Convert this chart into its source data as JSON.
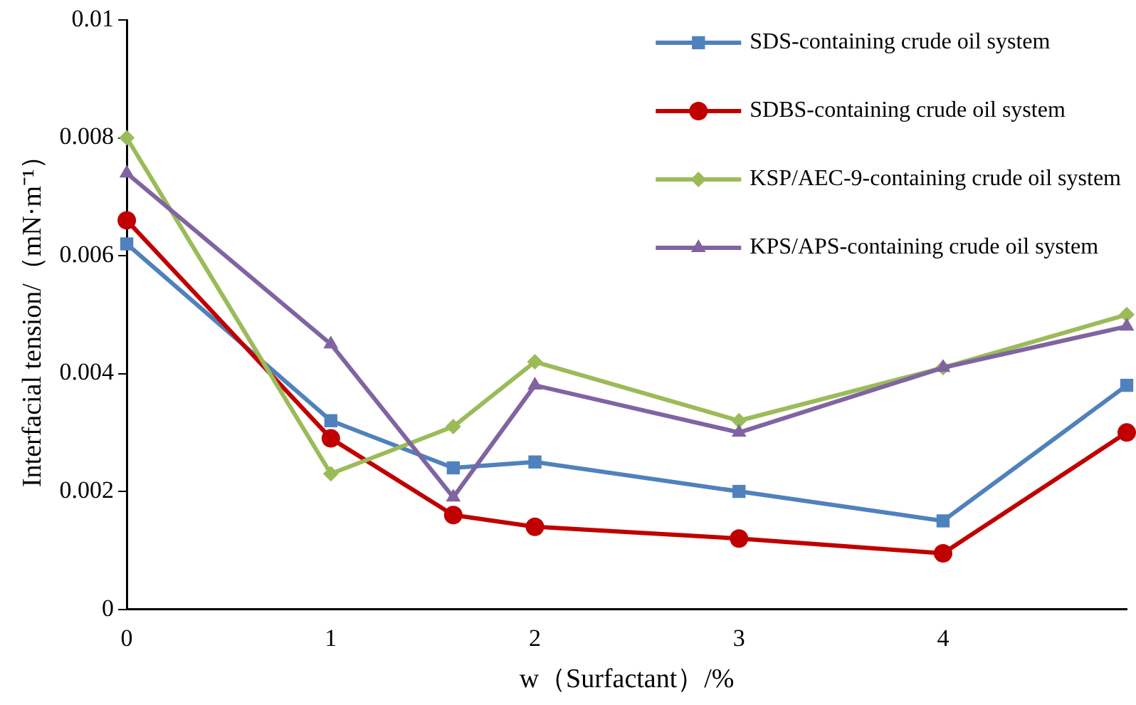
{
  "chart_data": {
    "type": "line",
    "xlabel": "w（Surfactant）/%",
    "ylabel": "Interfacial tension/（mN·m⁻¹）",
    "x": [
      0,
      1,
      1.6,
      2,
      3,
      4,
      4.9
    ],
    "xlim": [
      0,
      4.9
    ],
    "xticks": [
      0,
      1,
      2,
      3,
      4
    ],
    "ylim": [
      0,
      0.01
    ],
    "yticks": [
      0,
      0.002,
      0.004,
      0.006,
      0.008,
      0.01
    ],
    "grid": false,
    "legend": "top right",
    "line_style": "solid",
    "series": [
      {
        "name": "SDS-containing crude oil system",
        "color": "#4f81bd",
        "marker": "square",
        "values": [
          0.0062,
          0.0032,
          0.0024,
          0.0025,
          0.002,
          0.0015,
          0.0038
        ]
      },
      {
        "name": "SDBS-containing crude oil system",
        "color": "#c00000",
        "marker": "circle",
        "values": [
          0.0066,
          0.0029,
          0.0016,
          0.0014,
          0.0012,
          0.00095,
          0.003
        ]
      },
      {
        "name": "KSP/AEC-9-containing crude oil system",
        "color": "#9bbb59",
        "marker": "diamond",
        "values": [
          0.008,
          0.0023,
          0.0031,
          0.0042,
          0.0032,
          0.0041,
          0.005
        ]
      },
      {
        "name": "KPS/APS-containing crude oil system",
        "color": "#8064a2",
        "marker": "triangle",
        "values": [
          0.0074,
          0.0045,
          0.0019,
          0.0038,
          0.003,
          0.0041,
          0.0048
        ]
      }
    ]
  }
}
